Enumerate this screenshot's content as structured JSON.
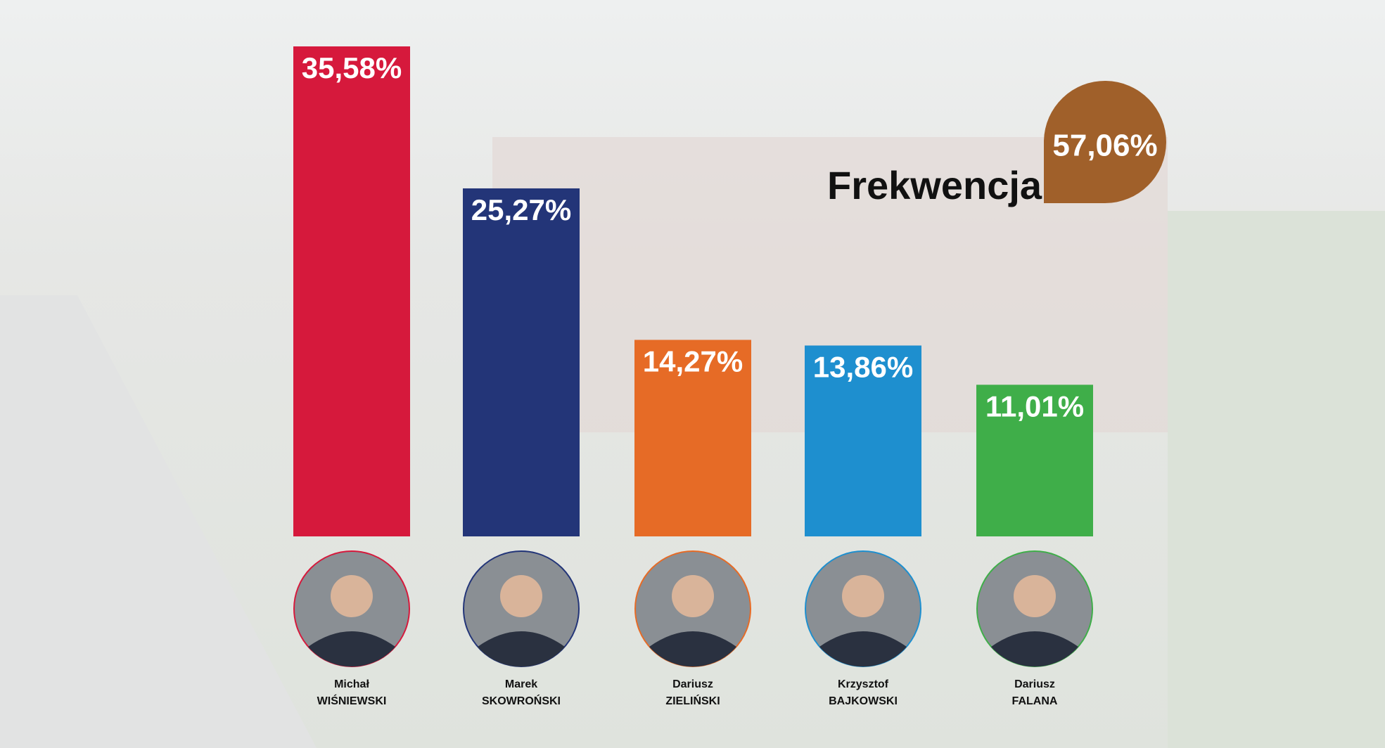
{
  "chart_data": {
    "type": "bar",
    "categories": [
      [
        "Michał",
        "WIŚNIEWSKI"
      ],
      [
        "Marek",
        "SKOWROŃSKI"
      ],
      [
        "Dariusz",
        "ZIELIŃSKI"
      ],
      [
        "Krzysztof",
        "BAJKOWSKI"
      ],
      [
        "Dariusz",
        "FALANA"
      ]
    ],
    "values": [
      35.58,
      25.27,
      14.27,
      13.86,
      11.01
    ],
    "value_labels": [
      "35,58%",
      "25,27%",
      "14,27%",
      "13,86%",
      "11,01%"
    ],
    "colors": [
      "#d6193c",
      "#233578",
      "#e66b26",
      "#1e8fcf",
      "#3fae49"
    ],
    "turnout": {
      "label": "Frekwencja:",
      "value_label": "57,06%",
      "color": "#a0602a"
    }
  }
}
